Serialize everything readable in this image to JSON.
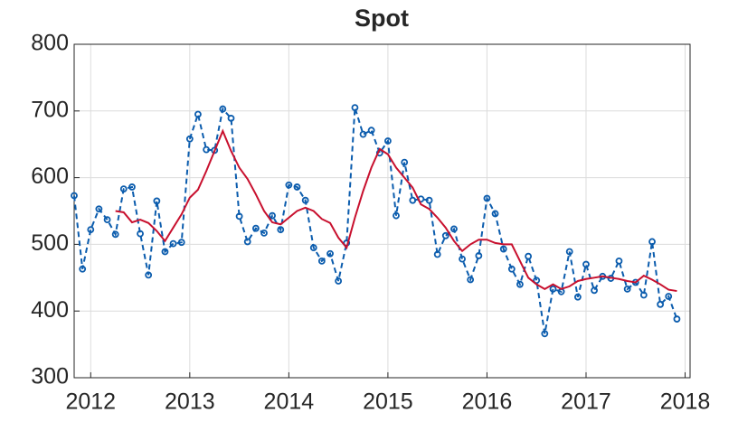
{
  "chart_data": {
    "type": "line",
    "title": "Spot",
    "x": [
      2011.833,
      2011.917,
      2012,
      2012.083,
      2012.167,
      2012.25,
      2012.333,
      2012.417,
      2012.5,
      2012.583,
      2012.667,
      2012.75,
      2012.833,
      2012.917,
      2013,
      2013.083,
      2013.167,
      2013.25,
      2013.333,
      2013.417,
      2013.5,
      2013.583,
      2013.667,
      2013.75,
      2013.833,
      2013.917,
      2014,
      2014.083,
      2014.167,
      2014.25,
      2014.333,
      2014.417,
      2014.5,
      2014.583,
      2014.667,
      2014.75,
      2014.833,
      2014.917,
      2015,
      2015.083,
      2015.167,
      2015.25,
      2015.333,
      2015.417,
      2015.5,
      2015.583,
      2015.667,
      2015.75,
      2015.833,
      2015.917,
      2016,
      2016.083,
      2016.167,
      2016.25,
      2016.333,
      2016.417,
      2016.5,
      2016.583,
      2016.667,
      2016.75,
      2016.833,
      2016.917,
      2017,
      2017.083,
      2017.167,
      2017.25,
      2017.333,
      2017.417,
      2017.5,
      2017.583,
      2017.667,
      2017.75,
      2017.833,
      2017.917
    ],
    "series": [
      {
        "color": "#0b5cad",
        "dashed": true,
        "markers": true,
        "values": [
          573,
          463,
          522,
          553,
          537,
          515,
          583,
          586,
          516,
          454,
          565,
          489,
          501,
          503,
          658,
          695,
          642,
          641,
          703,
          689,
          542,
          504,
          524,
          517,
          543,
          522,
          589,
          586,
          566,
          495,
          475,
          486,
          445,
          502,
          705,
          665,
          671,
          637,
          655,
          543,
          623,
          566,
          568,
          566,
          485,
          513,
          523,
          478,
          447,
          483,
          569,
          546,
          493,
          463,
          440,
          482,
          446,
          366,
          433,
          429,
          489,
          421,
          470,
          431,
          452,
          449,
          475,
          433,
          443,
          424,
          504,
          410,
          422,
          388
        ]
      },
      {
        "color": "#c8102e",
        "dashed": false,
        "markers": false,
        "values": [
          null,
          null,
          null,
          null,
          null,
          550,
          548,
          533,
          537,
          532,
          520,
          505,
          525,
          545,
          570,
          582,
          610,
          640,
          670,
          640,
          615,
          598,
          575,
          550,
          533,
          530,
          540,
          550,
          555,
          550,
          538,
          532,
          510,
          495,
          540,
          580,
          615,
          643,
          635,
          615,
          600,
          585,
          560,
          553,
          540,
          525,
          505,
          490,
          500,
          507,
          507,
          502,
          500,
          500,
          475,
          450,
          440,
          433,
          440,
          433,
          437,
          445,
          448,
          450,
          452,
          450,
          448,
          445,
          443,
          453,
          447,
          440,
          432,
          430
        ]
      }
    ],
    "xlim": [
      2011.833,
      2018.05
    ],
    "xticks": [
      2012,
      2013,
      2014,
      2015,
      2016,
      2017,
      2018
    ],
    "ylim": [
      300,
      800
    ],
    "yticks": [
      300,
      400,
      500,
      600,
      700,
      800
    ],
    "grid": true
  }
}
